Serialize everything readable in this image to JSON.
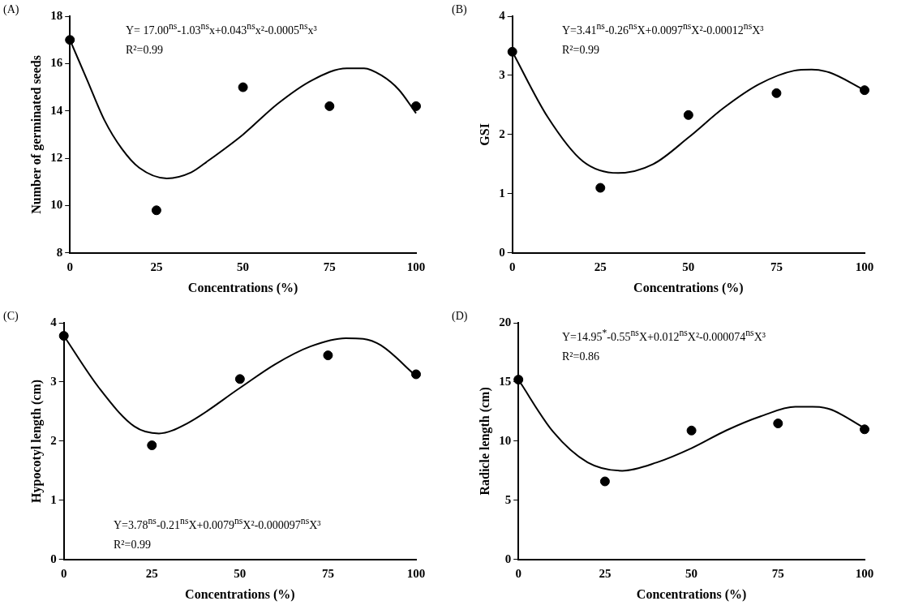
{
  "chart_data": [
    {
      "type": "scatter",
      "xlabel": "Concentrations (%)",
      "ylabel": "Number of germinated seeds",
      "xlim": [
        0,
        100
      ],
      "xticks": [
        0,
        25,
        50,
        75,
        100
      ],
      "ylim": [
        8,
        18
      ],
      "yticks": [
        8,
        10,
        12,
        14,
        16,
        18
      ],
      "grid": false,
      "legend": false,
      "annotations": [
        "(A)",
        "Y= 17.00$^{ns}$-1.03$^{ns}$x+0.043$^{ns}$x²-0.0005$^{ns}$x³",
        "R²=0.99"
      ],
      "series": [
        {
          "type": "scatter",
          "color": "#000000",
          "marker": "circle",
          "x": [
            0,
            25,
            50,
            75,
            100
          ],
          "values": [
            17,
            9.8,
            15,
            14.2,
            14.2
          ]
        },
        {
          "type": "line",
          "color": "#000000",
          "marker": "none",
          "x": [
            0,
            5,
            10,
            15,
            20,
            28,
            35,
            40,
            50,
            60,
            70,
            80,
            85,
            90,
            95,
            100
          ],
          "values": [
            17,
            15.3,
            13.6,
            12.4,
            11.6,
            11.15,
            11.4,
            11.9,
            13.0,
            14.3,
            15.3,
            15.8,
            15.8,
            15.5,
            14.9,
            13.9
          ]
        }
      ]
    },
    {
      "type": "scatter",
      "xlabel": "Concentrations (%)",
      "ylabel": "GSI",
      "xlim": [
        0,
        100
      ],
      "xticks": [
        0,
        25,
        50,
        75,
        100
      ],
      "ylim": [
        0,
        4
      ],
      "yticks": [
        0,
        1,
        2,
        3,
        4
      ],
      "grid": false,
      "legend": false,
      "annotations": [
        "(B)",
        "Y=3.41$^{ns}$-0.26$^{ns}$X+0.0097$^{ns}$X²-0.00012$^{ns}$X³",
        "R²=0.99"
      ],
      "series": [
        {
          "type": "scatter",
          "color": "#000000",
          "marker": "circle",
          "x": [
            0,
            25,
            50,
            75,
            100
          ],
          "values": [
            3.4,
            1.1,
            2.33,
            2.7,
            2.75
          ]
        },
        {
          "type": "line",
          "color": "#000000",
          "marker": "none",
          "x": [
            0,
            10,
            20,
            30,
            40,
            50,
            60,
            70,
            80,
            85,
            90,
            100
          ],
          "values": [
            3.4,
            2.3,
            1.55,
            1.35,
            1.5,
            1.95,
            2.45,
            2.85,
            3.08,
            3.1,
            3.05,
            2.75
          ]
        }
      ]
    },
    {
      "type": "scatter",
      "xlabel": "Concentrations (%)",
      "ylabel": "Hypocotyl length (cm)",
      "xlim": [
        0,
        100
      ],
      "xticks": [
        0,
        25,
        50,
        75,
        100
      ],
      "ylim": [
        0,
        4
      ],
      "yticks": [
        0,
        1,
        2,
        3,
        4
      ],
      "grid": false,
      "legend": false,
      "annotations": [
        "(C)",
        "Y=3.78$^{ns}$-0.21$^{ns}$X+0.0079$^{ns}$X²-0.000097$^{ns}$X³",
        "R²=0.99"
      ],
      "series": [
        {
          "type": "scatter",
          "color": "#000000",
          "marker": "circle",
          "x": [
            0,
            25,
            50,
            75,
            100
          ],
          "values": [
            3.78,
            1.93,
            3.05,
            3.45,
            3.13
          ]
        },
        {
          "type": "line",
          "color": "#000000",
          "marker": "none",
          "x": [
            0,
            10,
            20,
            27,
            35,
            50,
            60,
            70,
            80,
            85,
            90,
            100
          ],
          "values": [
            3.78,
            2.9,
            2.25,
            2.13,
            2.3,
            2.9,
            3.3,
            3.6,
            3.74,
            3.73,
            3.62,
            3.1
          ]
        }
      ]
    },
    {
      "type": "scatter",
      "xlabel": "Concentrations (%)",
      "ylabel": "Radicle length (cm)",
      "xlim": [
        0,
        100
      ],
      "xticks": [
        0,
        25,
        50,
        75,
        100
      ],
      "ylim": [
        0,
        20
      ],
      "yticks": [
        0,
        5,
        10,
        15,
        20
      ],
      "grid": false,
      "legend": false,
      "annotations": [
        "(D)",
        "Y=14.95$^{*}$-0.55$^{ns}$X+0.012$^{ns}$X²-0.000074$^{ns}$X³",
        "R²=0.86"
      ],
      "series": [
        {
          "type": "scatter",
          "color": "#000000",
          "marker": "circle",
          "x": [
            0,
            25,
            50,
            75,
            100
          ],
          "values": [
            15.2,
            6.6,
            10.9,
            11.5,
            11
          ]
        },
        {
          "type": "line",
          "color": "#000000",
          "marker": "none",
          "x": [
            0,
            10,
            20,
            30,
            40,
            50,
            60,
            70,
            80,
            85,
            90,
            100
          ],
          "values": [
            15.2,
            10.8,
            8.2,
            7.5,
            8.2,
            9.4,
            10.9,
            12.1,
            12.9,
            12.9,
            12.7,
            11.1
          ]
        }
      ]
    }
  ]
}
